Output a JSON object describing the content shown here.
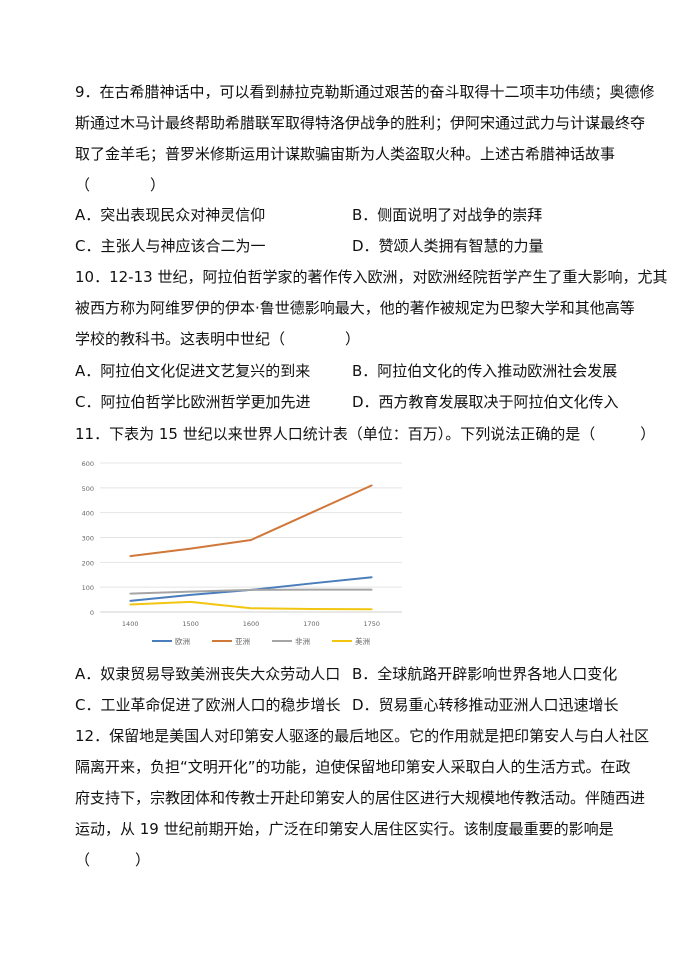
{
  "questions": {
    "q9": {
      "lines": [
        "9．在古希腊神话中，可以看到赫拉克勒斯通过艰苦的奋斗取得十二项丰功伟绩；奥德修",
        "斯通过木马计最终帮助希腊联军取得特洛伊战争的胜利；伊阿宋通过武力与计谋最终夺",
        "取了金羊毛；普罗米修斯运用计谋欺骗宙斯为人类盗取火种。上述古希腊神话故事",
        "（　　　　）"
      ],
      "options": {
        "A": "A．突出表现民众对神灵信仰",
        "B": "B．侧面说明了对战争的崇拜",
        "C": "C．主张人与神应该合二为一",
        "D": "D．赞颂人类拥有智慧的力量"
      }
    },
    "q10": {
      "lines": [
        "10．12-13 世纪，阿拉伯哲学家的著作传入欧洲，对欧洲经院哲学产生了重大影响，尤其",
        "被西方称为阿维罗伊的伊本·鲁世德影响最大，他的著作被规定为巴黎大学和其他高等",
        "学校的教科书。这表明中世纪（　　　　）"
      ],
      "options": {
        "A": "A．阿拉伯文化促进文艺复兴的到来",
        "B": "B．阿拉伯文化的传入推动欧洲社会发展",
        "C": "C．阿拉伯哲学比欧洲哲学更加先进",
        "D": "D．西方教育发展取决于阿拉伯文化传入"
      }
    },
    "q11": {
      "lines": [
        "11．下表为 15 世纪以来世界人口统计表（单位：百万）。下列说法正确的是（　　　）"
      ],
      "options": {
        "A": "A．奴隶贸易导致美洲丧失大众劳动人口",
        "B": "B．全球航路开辟影响世界各地人口变化",
        "C": "C．工业革命促进了欧洲人口的稳步增长",
        "D": "D．贸易重心转移推动亚洲人口迅速增长"
      }
    },
    "q12": {
      "lines": [
        "12．保留地是美国人对印第安人驱逐的最后地区。它的作用就是把印第安人与白人社区",
        "隔离开来，负担“文明开化”的功能，迫使保留地印第安人采取白人的生活方式。在政",
        "府支持下，宗教团体和传教士开赴印第安人的居住区进行大规模地传教活动。伴随西进",
        "运动，从 19 世纪前期开始，广泛在印第安人居住区实行。该制度最重要的影响是",
        "（　　　）"
      ]
    }
  },
  "chart_data": {
    "type": "line",
    "categories": [
      "1400",
      "1500",
      "1600",
      "1700",
      "1750"
    ],
    "ylim": [
      0,
      600
    ],
    "yticks": [
      "0",
      "100",
      "200",
      "300",
      "400",
      "500",
      "600"
    ],
    "grid": true,
    "legend_position": "bottom",
    "series": [
      {
        "name": "欧洲",
        "color": "#4a7ebb",
        "values": [
          45,
          69,
          89,
          115,
          140
        ]
      },
      {
        "name": "亚洲",
        "color": "#d0773a",
        "values": [
          225,
          255,
          290,
          400,
          510
        ]
      },
      {
        "name": "非洲",
        "color": "#a5a5a5",
        "values": [
          74,
          82,
          89,
          90,
          90
        ]
      },
      {
        "name": "美洲",
        "color": "#f2c511",
        "values": [
          30,
          41,
          15,
          12,
          11
        ]
      }
    ]
  }
}
